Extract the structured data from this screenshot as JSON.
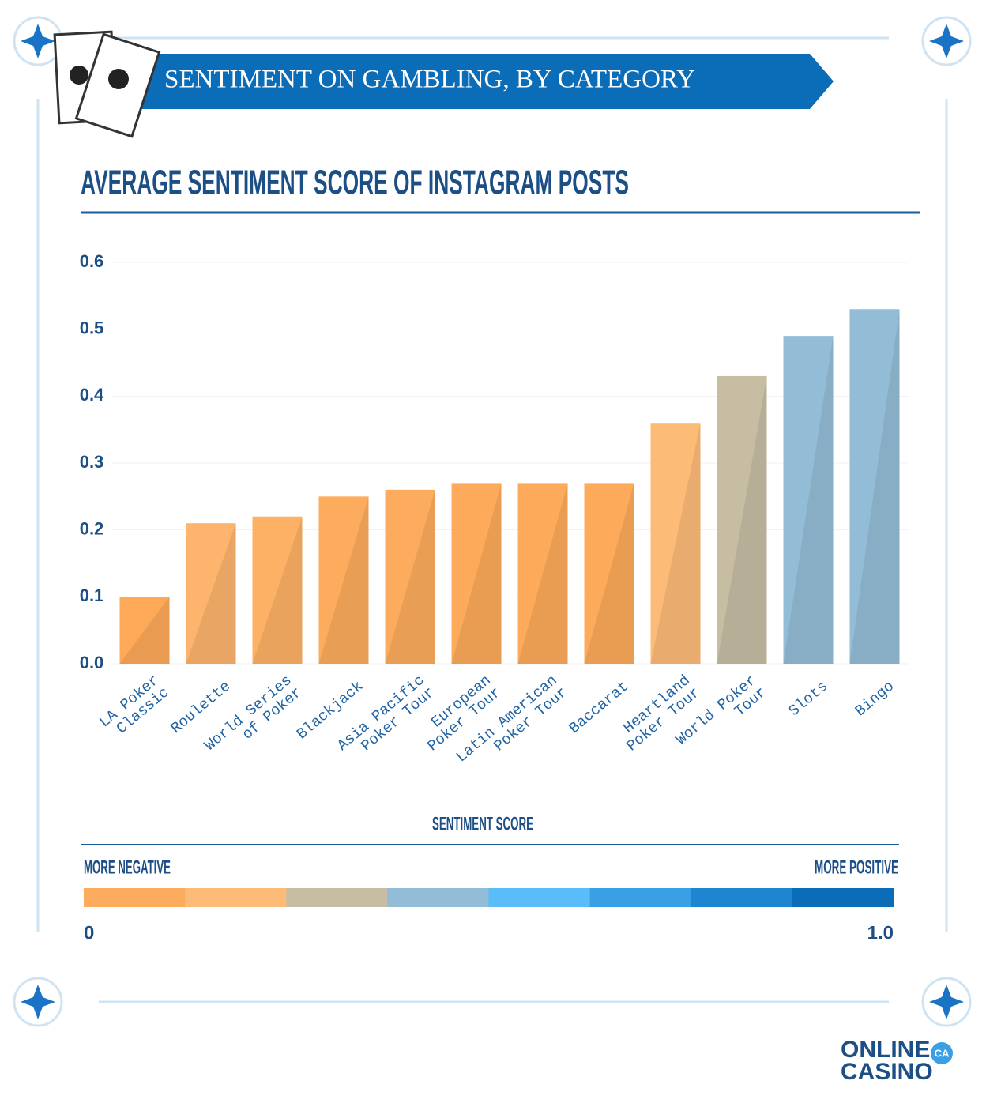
{
  "header": {
    "banner": "SENTIMENT ON GAMBLING, BY CATEGORY"
  },
  "logo": {
    "line1": "ONLINE",
    "line2": "CASINO",
    "badge": "CA"
  },
  "chart_data": {
    "type": "bar",
    "title": "AVERAGE SENTIMENT SCORE OF INSTAGRAM POSTS",
    "categories": [
      [
        "LA Poker",
        "Classic"
      ],
      [
        "Roulette"
      ],
      [
        "World Series",
        "of Poker"
      ],
      [
        "Blackjack"
      ],
      [
        "Asia Pacific",
        "Poker Tour"
      ],
      [
        "European",
        "Poker Tour"
      ],
      [
        "Latin American",
        "Poker Tour"
      ],
      [
        "Baccarat"
      ],
      [
        "Heartland",
        "Poker Tour"
      ],
      [
        "World Poker",
        "Tour"
      ],
      [
        "Slots"
      ],
      [
        "Bingo"
      ]
    ],
    "values": [
      0.1,
      0.21,
      0.22,
      0.25,
      0.26,
      0.27,
      0.27,
      0.27,
      0.36,
      0.43,
      0.49,
      0.53
    ],
    "colors": [
      "#fda958",
      "#fdb46c",
      "#fdb165",
      "#fdac5e",
      "#fdac5e",
      "#fdab5b",
      "#fdab5b",
      "#fdab5b",
      "#fdbb78",
      "#c6bda3",
      "#93bdd6",
      "#93bdd6"
    ],
    "ylim": [
      0,
      0.6
    ],
    "yticks": [
      {
        "value": 0,
        "label": "0.0"
      },
      0.1,
      0.2,
      0.3,
      0.4,
      0.5,
      0.6
    ],
    "grid": true,
    "scale": {
      "title": "SENTIMENT SCORE",
      "left_label": "MORE NEGATIVE",
      "right_label": "MORE POSITIVE",
      "ticks": [
        0,
        {
          "value": 1,
          "label": "1.0"
        }
      ],
      "colors": [
        "#fdac5e",
        "#fdbb78",
        "#c6bda3",
        "#93bdd6",
        "#5bbcfa",
        "#3aa0e6",
        "#1e86d0",
        "#0b6cb8"
      ]
    }
  }
}
